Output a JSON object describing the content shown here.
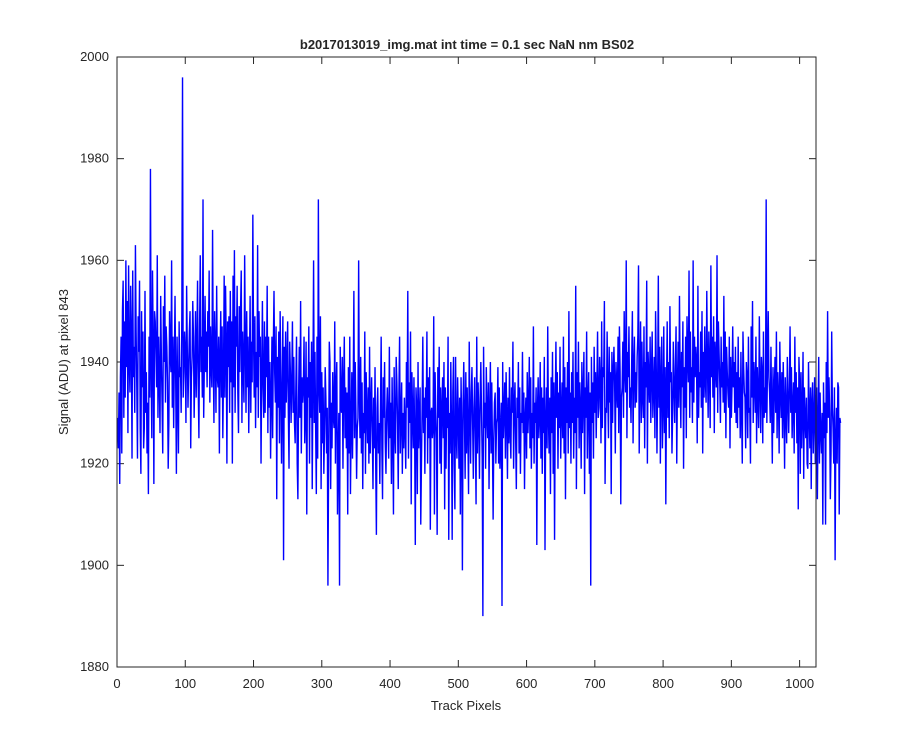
{
  "chart_data": {
    "type": "line",
    "title": "b2017013019_img.mat int time = 0.1 sec  NaN nm BS02",
    "xlabel": "Track Pixels",
    "ylabel": "Signal (ADU) at pixel 843",
    "xlim": [
      0,
      1024
    ],
    "ylim": [
      1880,
      2000
    ],
    "xticks": [
      0,
      100,
      200,
      300,
      400,
      500,
      600,
      700,
      800,
      900,
      1000
    ],
    "yticks": [
      1880,
      1900,
      1920,
      1940,
      1960,
      1980,
      2000
    ],
    "grid": false,
    "legend": "none",
    "line_color": "#0000ff",
    "series": [
      {
        "x_start": 1,
        "x_step": 1,
        "y": [
          1929,
          1923,
          1934,
          1916,
          1937,
          1945,
          1922,
          1950,
          1956,
          1929,
          1948,
          1933,
          1960,
          1939,
          1952,
          1926,
          1959,
          1940,
          1934,
          1955,
          1945,
          1921,
          1958,
          1937,
          1943,
          1930,
          1963,
          1946,
          1935,
          1921,
          1949,
          1942,
          1956,
          1927,
          1918,
          1950,
          1935,
          1946,
          1923,
          1927,
          1954,
          1930,
          1938,
          1922,
          1932,
          1914,
          1945,
          1933,
          1978,
          1939,
          1925,
          1958,
          1944,
          1916,
          1950,
          1948,
          1942,
          1935,
          1961,
          1929,
          1945,
          1937,
          1926,
          1953,
          1941,
          1932,
          1922,
          1951,
          1940,
          1957,
          1932,
          1947,
          1943,
          1936,
          1919,
          1928,
          1950,
          1942,
          1938,
          1960,
          1931,
          1945,
          1927,
          1940,
          1953,
          1936,
          1918,
          1945,
          1933,
          1922,
          1948,
          1937,
          1939,
          1930,
          1950,
          1996,
          1933,
          1938,
          1946,
          1942,
          1928,
          1955,
          1942,
          1931,
          1939,
          1946,
          1950,
          1923,
          1937,
          1941,
          1952,
          1945,
          1929,
          1938,
          1950,
          1933,
          1943,
          1956,
          1935,
          1925,
          1947,
          1961,
          1938,
          1945,
          1933,
          1972,
          1929,
          1940,
          1953,
          1938,
          1946,
          1935,
          1950,
          1943,
          1958,
          1932,
          1947,
          1939,
          1935,
          1966,
          1941,
          1928,
          1950,
          1943,
          1930,
          1955,
          1937,
          1935,
          1945,
          1922,
          1941,
          1950,
          1933,
          1947,
          1925,
          1937,
          1957,
          1933,
          1955,
          1944,
          1920,
          1948,
          1939,
          1949,
          1930,
          1954,
          1936,
          1948,
          1920,
          1957,
          1935,
          1962,
          1930,
          1949,
          1943,
          1955,
          1934,
          1926,
          1951,
          1938,
          1950,
          1958,
          1928,
          1946,
          1939,
          1932,
          1961,
          1944,
          1930,
          1950,
          1935,
          1945,
          1926,
          1939,
          1953,
          1930,
          1944,
          1936,
          1969,
          1945,
          1933,
          1949,
          1927,
          1942,
          1935,
          1963,
          1929,
          1950,
          1941,
          1945,
          1920,
          1937,
          1952,
          1935,
          1929,
          1948,
          1930,
          1945,
          1937,
          1955,
          1926,
          1945,
          1931,
          1940,
          1921,
          1933,
          1945,
          1925,
          1943,
          1954,
          1938,
          1932,
          1947,
          1913,
          1941,
          1931,
          1946,
          1924,
          1950,
          1936,
          1920,
          1935,
          1949,
          1901,
          1943,
          1929,
          1946,
          1932,
          1939,
          1948,
          1930,
          1919,
          1944,
          1938,
          1928,
          1936,
          1948,
          1930,
          1941,
          1928,
          1924,
          1935,
          1945,
          1920,
          1913,
          1933,
          1943,
          1929,
          1952,
          1922,
          1937,
          1932,
          1935,
          1945,
          1924,
          1930,
          1944,
          1910,
          1937,
          1933,
          1947,
          1920,
          1940,
          1929,
          1944,
          1915,
          1936,
          1960,
          1928,
          1942,
          1927,
          1914,
          1945,
          1921,
          1972,
          1935,
          1930,
          1949,
          1915,
          1938,
          1924,
          1935,
          1918,
          1926,
          1939,
          1933,
          1922,
          1931,
          1896,
          1920,
          1944,
          1940,
          1915,
          1932,
          1923,
          1938,
          1929,
          1927,
          1948,
          1920,
          1935,
          1940,
          1910,
          1922,
          1930,
          1896,
          1943,
          1932,
          1930,
          1941,
          1919,
          1936,
          1945,
          1925,
          1935,
          1923,
          1934,
          1910,
          1939,
          1922,
          1945,
          1914,
          1927,
          1938,
          1921,
          1934,
          1954,
          1925,
          1940,
          1930,
          1917,
          1927,
          1929,
          1960,
          1933,
          1925,
          1941,
          1922,
          1936,
          1915,
          1930,
          1926,
          1946,
          1918,
          1938,
          1930,
          1924,
          1935,
          1920,
          1943,
          1922,
          1931,
          1937,
          1926,
          1915,
          1933,
          1923,
          1939,
          1920,
          1906,
          1931,
          1935,
          1922,
          1928,
          1916,
          1931,
          1945,
          1923,
          1913,
          1937,
          1929,
          1940,
          1924,
          1918,
          1930,
          1935,
          1928,
          1921,
          1943,
          1925,
          1932,
          1916,
          1937,
          1926,
          1910,
          1939,
          1927,
          1922,
          1941,
          1936,
          1928,
          1915,
          1934,
          1945,
          1922,
          1929,
          1936,
          1918,
          1930,
          1923,
          1933,
          1927,
          1919,
          1940,
          1931,
          1954,
          1921,
          1936,
          1928,
          1946,
          1912,
          1938,
          1930,
          1923,
          1937,
          1926,
          1904,
          1935,
          1931,
          1914,
          1940,
          1923,
          1929,
          1935,
          1908,
          1920,
          1931,
          1945,
          1926,
          1933,
          1918,
          1935,
          1929,
          1946,
          1920,
          1937,
          1925,
          1939,
          1907,
          1930,
          1931,
          1925,
          1927,
          1949,
          1910,
          1938,
          1930,
          1925,
          1906,
          1939,
          1929,
          1943,
          1920,
          1935,
          1918,
          1931,
          1937,
          1925,
          1940,
          1911,
          1935,
          1919,
          1933,
          1927,
          1945,
          1905,
          1930,
          1922,
          1940,
          1928,
          1905,
          1934,
          1941,
          1920,
          1911,
          1941,
          1926,
          1921,
          1937,
          1929,
          1919,
          1933,
          1910,
          1937,
          1927,
          1899,
          1932,
          1940,
          1929,
          1917,
          1938,
          1922,
          1935,
          1926,
          1914,
          1944,
          1930,
          1920,
          1934,
          1939,
          1928,
          1917,
          1931,
          1937,
          1925,
          1912,
          1945,
          1922,
          1936,
          1929,
          1917,
          1933,
          1940,
          1930,
          1921,
          1890,
          1943,
          1927,
          1932,
          1919,
          1939,
          1930,
          1925,
          1936,
          1915,
          1930,
          1940,
          1922,
          1936,
          1924,
          1909,
          1925,
          1932,
          1934,
          1920,
          1928,
          1929,
          1939,
          1920,
          1935,
          1919,
          1927,
          1932,
          1892,
          1940,
          1925,
          1930,
          1936,
          1921,
          1938,
          1930,
          1917,
          1933,
          1924,
          1939,
          1926,
          1921,
          1935,
          1930,
          1944,
          1919,
          1931,
          1936,
          1925,
          1915,
          1933,
          1929,
          1940,
          1922,
          1935,
          1918,
          1930,
          1928,
          1942,
          1926,
          1934,
          1915,
          1929,
          1933,
          1921,
          1938,
          1926,
          1931,
          1941,
          1923,
          1937,
          1919,
          1930,
          1925,
          1947,
          1920,
          1932,
          1928,
          1935,
          1904,
          1931,
          1937,
          1925,
          1929,
          1940,
          1921,
          1935,
          1918,
          1933,
          1926,
          1941,
          1903,
          1928,
          1935,
          1923,
          1947,
          1929,
          1922,
          1933,
          1914,
          1937,
          1926,
          1942,
          1918,
          1936,
          1905,
          1931,
          1944,
          1929,
          1938,
          1919,
          1934,
          1927,
          1943,
          1921,
          1930,
          1936,
          1925,
          1945,
          1922,
          1939,
          1913,
          1935,
          1928,
          1940,
          1922,
          1950,
          1927,
          1934,
          1920,
          1938,
          1928,
          1942,
          1921,
          1933,
          1926,
          1955,
          1915,
          1938,
          1929,
          1944,
          1923,
          1936,
          1931,
          1919,
          1940,
          1926,
          1934,
          1942,
          1914,
          1935,
          1929,
          1946,
          1921,
          1932,
          1938,
          1918,
          1934,
          1896,
          1941,
          1928,
          1936,
          1921,
          1943,
          1930,
          1938,
          1925,
          1935,
          1946,
          1929,
          1931,
          1941,
          1936,
          1924,
          1948,
          1927,
          1939,
          1937,
          1952,
          1916,
          1931,
          1930,
          1946,
          1934,
          1925,
          1943,
          1932,
          1938,
          1914,
          1942,
          1928,
          1938,
          1943,
          1936,
          1922,
          1940,
          1935,
          1931,
          1945,
          1926,
          1947,
          1938,
          1912,
          1933,
          1935,
          1944,
          1929,
          1950,
          1938,
          1934,
          1960,
          1925,
          1942,
          1937,
          1947,
          1931,
          1935,
          1928,
          1940,
          1950,
          1924,
          1939,
          1945,
          1931,
          1938,
          1932,
          1941,
          1945,
          1959,
          1922,
          1936,
          1948,
          1928,
          1944,
          1933,
          1929,
          1947,
          1923,
          1940,
          1935,
          1956,
          1920,
          1942,
          1937,
          1932,
          1945,
          1928,
          1938,
          1946,
          1929,
          1935,
          1941,
          1925,
          1950,
          1939,
          1922,
          1935,
          1957,
          1931,
          1943,
          1920,
          1937,
          1945,
          1923,
          1931,
          1947,
          1926,
          1939,
          1912,
          1935,
          1948,
          1929,
          1940,
          1925,
          1951,
          1936,
          1938,
          1922,
          1930,
          1944,
          1935,
          1928,
          1939,
          1947,
          1920,
          1935,
          1944,
          1931,
          1953,
          1937,
          1927,
          1942,
          1935,
          1948,
          1919,
          1939,
          1931,
          1945,
          1925,
          1949,
          1941,
          1936,
          1958,
          1929,
          1946,
          1934,
          1939,
          1928,
          1960,
          1932,
          1945,
          1937,
          1943,
          1940,
          1924,
          1955,
          1929,
          1938,
          1935,
          1946,
          1931,
          1950,
          1922,
          1942,
          1933,
          1947,
          1936,
          1932,
          1954,
          1940,
          1929,
          1946,
          1938,
          1927,
          1959,
          1937,
          1945,
          1933,
          1949,
          1926,
          1944,
          1939,
          1935,
          1961,
          1930,
          1948,
          1942,
          1936,
          1928,
          1945,
          1935,
          1940,
          1932,
          1953,
          1930,
          1946,
          1925,
          1943,
          1938,
          1934,
          1931,
          1945,
          1923,
          1941,
          1929,
          1936,
          1947,
          1935,
          1940,
          1930,
          1943,
          1928,
          1938,
          1927,
          1945,
          1931,
          1937,
          1925,
          1942,
          1930,
          1920,
          1946,
          1939,
          1934,
          1933,
          1923,
          1940,
          1937,
          1925,
          1945,
          1930,
          1931,
          1920,
          1947,
          1933,
          1952,
          1928,
          1940,
          1936,
          1930,
          1945,
          1924,
          1939,
          1933,
          1927,
          1949,
          1935,
          1926,
          1941,
          1938,
          1924,
          1946,
          1929,
          1935,
          1930,
          1972,
          1928,
          1940,
          1950,
          1937,
          1934,
          1928,
          1943,
          1931,
          1920,
          1939,
          1926,
          1935,
          1941,
          1930,
          1946,
          1925,
          1938,
          1933,
          1922,
          1944,
          1934,
          1929,
          1938,
          1925,
          1940,
          1932,
          1919,
          1937,
          1930,
          1924,
          1941,
          1933,
          1926,
          1935,
          1947,
          1930,
          1939,
          1925,
          1931,
          1936,
          1922,
          1945,
          1930,
          1938,
          1924,
          1935,
          1911,
          1941,
          1936,
          1918,
          1938,
          1923,
          1930,
          1942,
          1917,
          1935,
          1929,
          1925,
          1933,
          1920,
          1919,
          1940,
          1930,
          1923,
          1935,
          1915,
          1932,
          1936,
          1922,
          1929,
          1937,
          1920,
          1933,
          1935,
          1913,
          1928,
          1941,
          1920,
          1934,
          1926,
          1922,
          1930,
          1908,
          1936,
          1925,
          1932,
          1908,
          1940,
          1926,
          1950,
          1929,
          1937,
          1930,
          1913,
          1922,
          1946,
          1931,
          1927,
          1920,
          1935,
          1901,
          1925,
          1931,
          1920,
          1936,
          1935,
          1910,
          1929,
          1928
        ]
      }
    ]
  }
}
